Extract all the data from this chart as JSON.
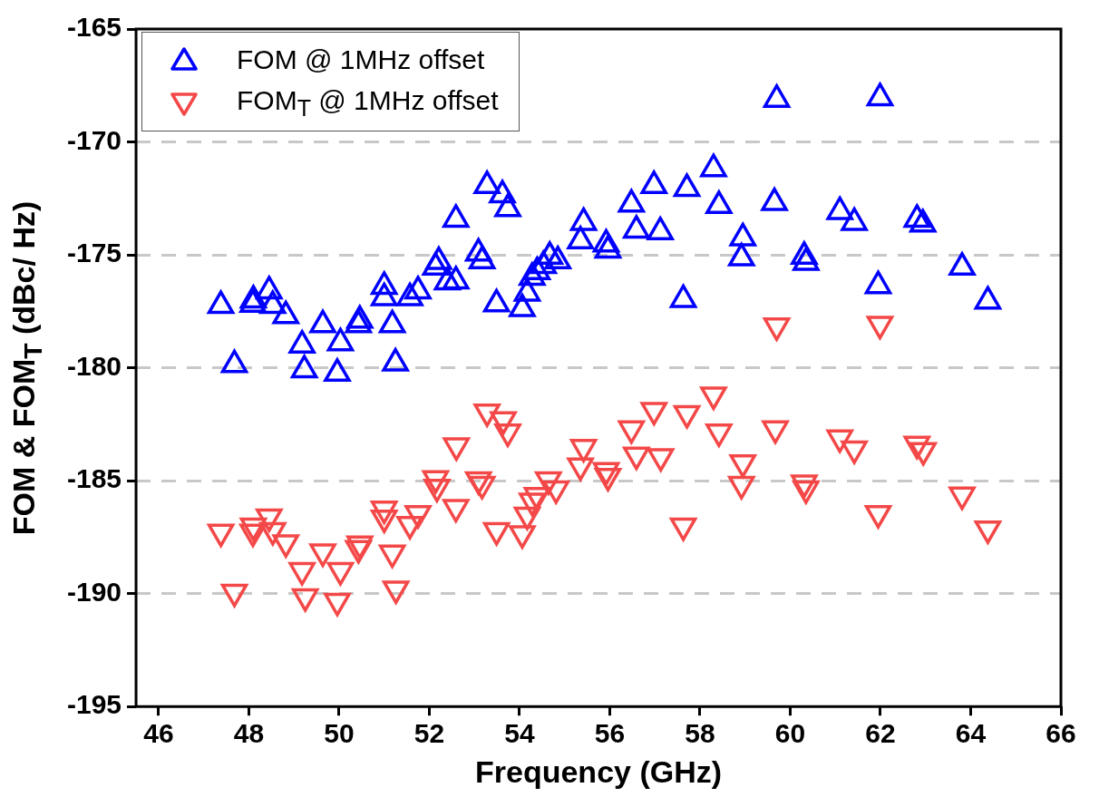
{
  "chart_data": {
    "type": "scatter",
    "xlabel": "Frequency (GHz)",
    "ylabel": "FOM & FOM$_{T}$ (dBc/ Hz)",
    "xlim": [
      45.5,
      66
    ],
    "xticks": [
      46,
      48,
      50,
      52,
      54,
      56,
      58,
      60,
      62,
      64,
      66
    ],
    "ylim": [
      -195,
      -165
    ],
    "yticks": [
      -195,
      -190,
      -185,
      -180,
      -175,
      -170,
      -165
    ],
    "grid": "y",
    "legend": "top left",
    "marker": "triangle",
    "series": [
      {
        "name": "FOM @ 1MHz offset",
        "color": "#0000ff",
        "x": [
          47.38,
          47.68,
          48.09,
          48.1,
          48.45,
          48.53,
          48.82,
          49.18,
          49.23,
          49.64,
          50.03,
          49.96,
          50.43,
          50.46,
          51.0,
          51.0,
          51.18,
          51.25,
          51.57,
          51.75,
          52.21,
          52.14,
          52.4,
          52.59,
          53.28,
          53.62,
          53.74,
          53.09,
          53.17,
          52.59,
          53.49,
          54.06,
          54.17,
          54.28,
          54.39,
          54.53,
          54.67,
          54.85,
          55.42,
          55.35,
          55.92,
          55.96,
          56.48,
          56.59,
          56.98,
          57.12,
          57.71,
          58.3,
          58.42,
          57.63,
          58.95,
          58.92,
          59.7,
          61.99,
          59.65,
          61.1,
          61.42,
          62.81,
          62.94,
          60.31,
          60.35,
          61.95,
          63.81,
          64.38
        ],
        "values": [
          -177.25,
          -179.87,
          -177.2,
          -177.0,
          -176.6,
          -177.25,
          -177.7,
          -179.0,
          -180.1,
          -178.1,
          -178.9,
          -180.25,
          -178.1,
          -177.9,
          -176.4,
          -176.9,
          -178.1,
          -179.8,
          -176.9,
          -176.6,
          -175.3,
          -175.55,
          -176.2,
          -173.43,
          -171.94,
          -172.35,
          -172.96,
          -174.93,
          -175.27,
          -176.16,
          -177.18,
          -177.39,
          -176.7,
          -176.0,
          -175.75,
          -175.48,
          -175.07,
          -175.27,
          -173.57,
          -174.39,
          -174.53,
          -174.8,
          -172.76,
          -173.91,
          -171.94,
          -173.98,
          -172.07,
          -171.19,
          -172.82,
          -176.98,
          -174.25,
          -175.14,
          -168.12,
          -168.05,
          -172.69,
          -173.09,
          -173.57,
          -173.43,
          -173.64,
          -175.07,
          -175.34,
          -176.37,
          -175.55,
          -177.05
        ]
      },
      {
        "name": "FOM$_{T}$ @ 1MHz offset",
        "color": "#f44848",
        "x": [
          47.38,
          47.68,
          48.09,
          48.1,
          48.45,
          48.53,
          48.82,
          49.18,
          49.25,
          49.64,
          50.03,
          49.96,
          50.43,
          50.46,
          51.0,
          51.0,
          51.18,
          51.26,
          51.57,
          51.75,
          52.17,
          52.14,
          52.59,
          52.6,
          53.28,
          53.64,
          53.74,
          53.09,
          53.17,
          53.49,
          54.06,
          54.17,
          54.28,
          54.39,
          54.64,
          54.81,
          55.42,
          55.35,
          55.92,
          55.96,
          56.48,
          56.59,
          56.98,
          57.13,
          57.71,
          58.3,
          58.42,
          57.63,
          58.95,
          58.92,
          59.7,
          61.99,
          59.67,
          61.1,
          61.42,
          62.81,
          62.95,
          60.31,
          60.35,
          61.95,
          63.81,
          64.38
        ],
        "values": [
          -187.27,
          -189.93,
          -187.27,
          -187.0,
          -186.6,
          -187.2,
          -187.74,
          -188.97,
          -190.13,
          -188.15,
          -188.97,
          -190.33,
          -188.0,
          -187.8,
          -186.25,
          -186.65,
          -188.2,
          -189.79,
          -186.93,
          -186.45,
          -185.29,
          -184.9,
          -186.18,
          -183.45,
          -181.95,
          -182.29,
          -182.84,
          -184.95,
          -185.16,
          -187.2,
          -187.34,
          -186.52,
          -185.9,
          -185.65,
          -184.95,
          -185.36,
          -183.52,
          -184.34,
          -184.54,
          -184.8,
          -182.7,
          -183.86,
          -181.88,
          -183.93,
          -182.02,
          -181.2,
          -182.84,
          -187.0,
          -184.2,
          -185.16,
          -178.14,
          -178.07,
          -182.7,
          -183.1,
          -183.59,
          -183.38,
          -183.66,
          -185.09,
          -185.36,
          -186.45,
          -185.63,
          -187.13
        ]
      }
    ]
  }
}
